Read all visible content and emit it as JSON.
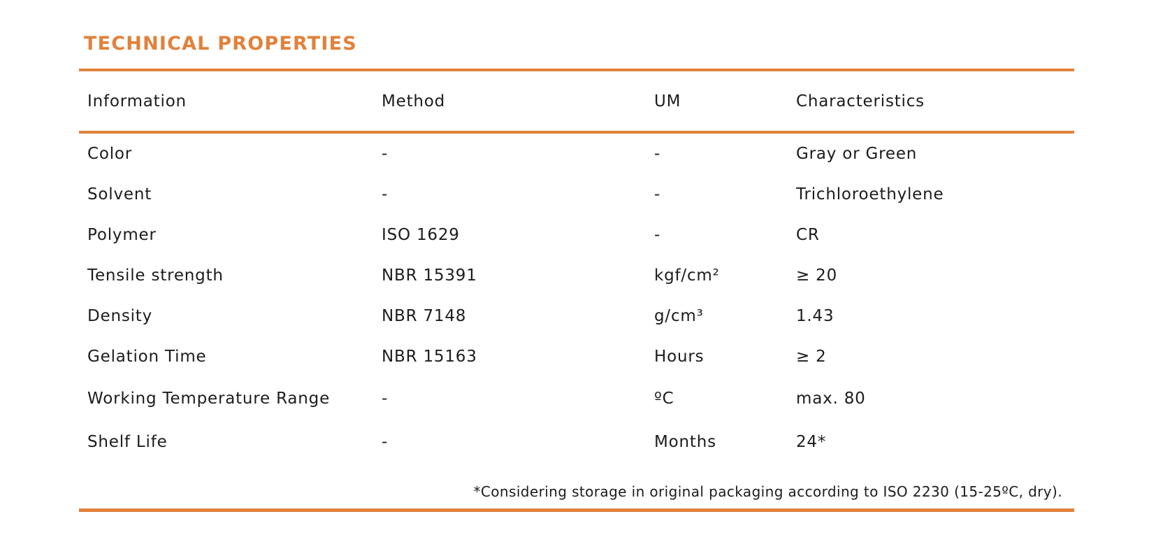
{
  "page": {
    "title": "TECHNICAL PROPERTIES",
    "accent_color": "#e2813a",
    "text_color": "#1c1c1c"
  },
  "table": {
    "columns": [
      "Information",
      "Method",
      "UM",
      "Characteristics"
    ],
    "rows": [
      {
        "information": "Color",
        "method": "-",
        "um": "-",
        "characteristics": "Gray or Green"
      },
      {
        "information": "Solvent",
        "method": "-",
        "um": "-",
        "characteristics": "Trichloroethylene"
      },
      {
        "information": "Polymer",
        "method": "ISO 1629",
        "um": "-",
        "characteristics": "CR"
      },
      {
        "information": "Tensile strength",
        "method": "NBR 15391",
        "um": "kgf/cm²",
        "characteristics": "≥ 20"
      },
      {
        "information": "Density",
        "method": "NBR 7148",
        "um": "g/cm³",
        "characteristics": "1.43"
      },
      {
        "information": "Gelation Time",
        "method": "NBR 15163",
        "um": "Hours",
        "characteristics": "≥ 2"
      },
      {
        "information": "Working Temperature Range",
        "method": "-",
        "um": "ºC",
        "characteristics": "max. 80"
      },
      {
        "information": "Shelf Life",
        "method": "-",
        "um": "Months",
        "characteristics": "24*"
      }
    ],
    "footnote": "*Considering storage in original packaging according to ISO 2230 (15-25ºC, dry)."
  }
}
